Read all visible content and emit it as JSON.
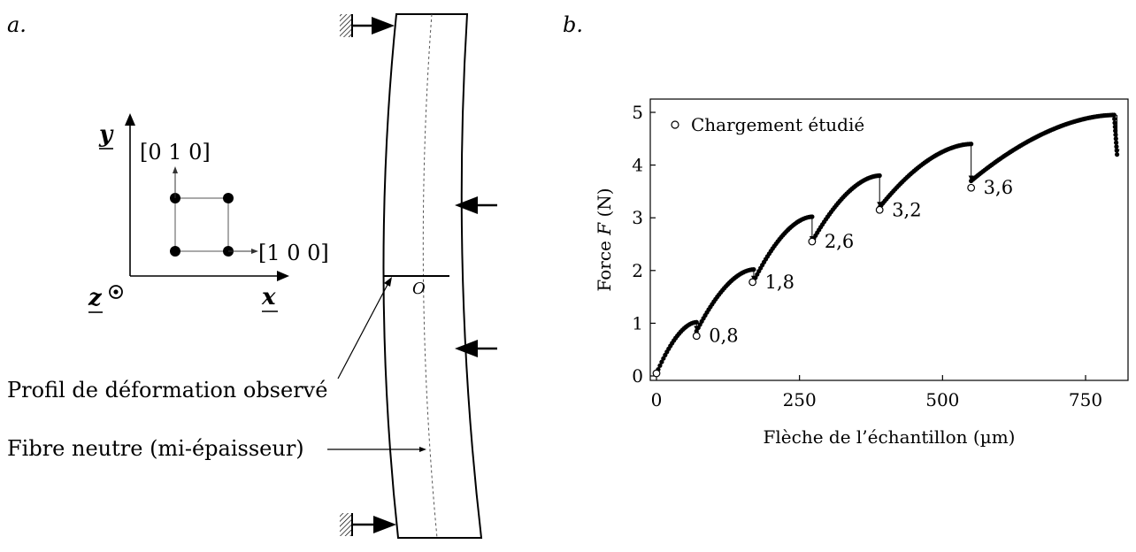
{
  "panel_a": {
    "panel_label": "a.",
    "axis_y": "y",
    "axis_x": "x",
    "axis_z": "z",
    "direction_010": "[0 1 0]",
    "direction_100": "[1 0 0]",
    "origin_label": "O",
    "label_profile": "Profil de déformation observé",
    "label_neutral": "Fibre neutre (mi-épaisseur)"
  },
  "panel_b": {
    "panel_label": "b."
  },
  "chart_data": {
    "type": "scatter",
    "title": "",
    "xlabel": "Flèche de l’échantillon (µm)",
    "ylabel_prefix": "Force ",
    "ylabel_var": "F",
    "ylabel_suffix": " (N)",
    "xlim": [
      0,
      900
    ],
    "ylim": [
      0,
      5.2
    ],
    "xticks": [
      0,
      250,
      500,
      750
    ],
    "yticks": [
      0,
      1,
      2,
      3,
      4,
      5
    ],
    "legend": {
      "label": "Chargement étudié",
      "position": "top-left"
    },
    "segments": [
      {
        "x_start": 0,
        "x_end": 70,
        "y_start": 0.05,
        "y_end": 1.02
      },
      {
        "x_start": 70,
        "x_end": 170,
        "y_start": 0.85,
        "y_end": 2.02
      },
      {
        "x_start": 170,
        "x_end": 272,
        "y_start": 1.8,
        "y_end": 3.02
      },
      {
        "x_start": 272,
        "x_end": 390,
        "y_start": 2.55,
        "y_end": 3.8
      },
      {
        "x_start": 390,
        "x_end": 550,
        "y_start": 3.2,
        "y_end": 4.4
      },
      {
        "x_start": 550,
        "x_end": 800,
        "y_start": 3.7,
        "y_end": 4.95
      }
    ],
    "drop_end": {
      "x": 805,
      "y": 4.2
    },
    "studied_loads": [
      {
        "x": 0,
        "y": 0.05,
        "label": ""
      },
      {
        "x": 70,
        "y": 0.76,
        "label": "0,8"
      },
      {
        "x": 168,
        "y": 1.78,
        "label": "1,8"
      },
      {
        "x": 272,
        "y": 2.55,
        "label": "2,6"
      },
      {
        "x": 390,
        "y": 3.15,
        "label": "3,2"
      },
      {
        "x": 550,
        "y": 3.57,
        "label": "3,6"
      }
    ]
  }
}
